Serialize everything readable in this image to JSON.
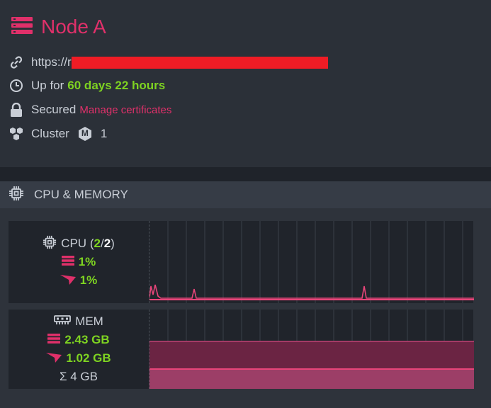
{
  "node": {
    "title": "Node A",
    "url_prefix": "https://r",
    "uptime_label": "Up for",
    "uptime_value": "60 days 22 hours",
    "secured_label": "Secured",
    "manage_certificates": "Manage certificates",
    "cluster_label": "Cluster",
    "cluster_badge": "M",
    "cluster_count": "1"
  },
  "section": {
    "title": "CPU & MEMORY"
  },
  "cpu": {
    "label": "CPU",
    "cores_open": "(",
    "cores_used": "2",
    "cores_sep": "/",
    "cores_total": "2",
    "cores_close": ")",
    "server_value": "1%",
    "process_value": "1%"
  },
  "mem": {
    "label": "MEM",
    "server_value": "2.43 GB",
    "process_value": "1.02 GB",
    "total_value": "Σ 4 GB"
  },
  "colors": {
    "accent": "#e0306a",
    "green": "#7ed321",
    "redaction": "#ef1c25",
    "chart_line": "#e8457a"
  },
  "icons": {
    "node": "server-icon",
    "url": "link-icon",
    "uptime": "clock-icon",
    "secured": "lock-icon",
    "cluster": "cluster-icon",
    "section": "chip-icon",
    "server_usage": "server-icon",
    "process_usage": "ravendb-logo-icon",
    "memory": "memory-icon"
  }
}
